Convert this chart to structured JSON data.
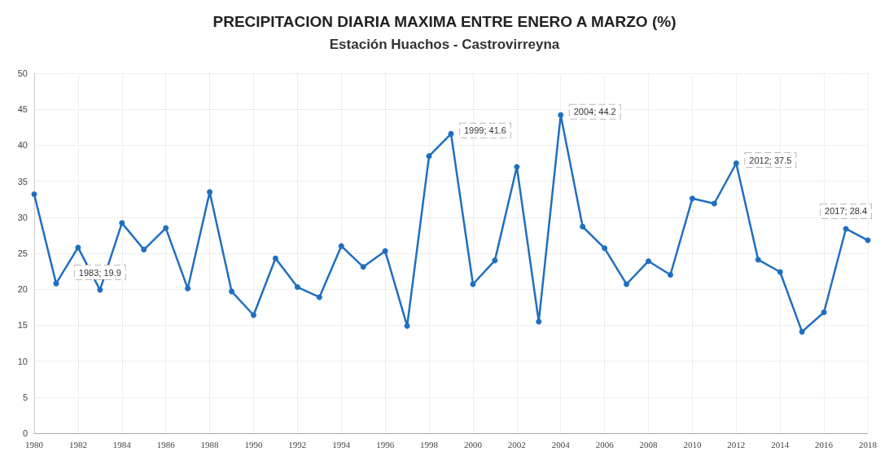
{
  "chart_data": {
    "type": "line",
    "title": "PRECIPITACION DIARIA MAXIMA ENTRE ENERO A MARZO (%)",
    "subtitle": "Estación Huachos - Castrovirreyna",
    "x": [
      1980,
      1981,
      1982,
      1983,
      1984,
      1985,
      1986,
      1987,
      1988,
      1989,
      1990,
      1991,
      1992,
      1993,
      1994,
      1995,
      1996,
      1997,
      1998,
      1999,
      2000,
      2001,
      2002,
      2003,
      2004,
      2005,
      2006,
      2007,
      2008,
      2009,
      2010,
      2011,
      2012,
      2013,
      2014,
      2015,
      2016,
      2017,
      2018
    ],
    "series": [
      {
        "color": "#1f6fc0",
        "values": [
          33.2,
          20.8,
          25.8,
          19.9,
          29.2,
          25.5,
          28.5,
          20.1,
          33.5,
          19.7,
          16.4,
          24.3,
          20.3,
          18.9,
          26.0,
          23.1,
          25.3,
          14.9,
          38.5,
          41.6,
          20.7,
          24.0,
          37.0,
          15.5,
          44.2,
          28.7,
          25.7,
          20.7,
          23.9,
          22.0,
          32.6,
          31.9,
          37.5,
          24.1,
          22.4,
          14.1,
          16.8,
          28.4,
          26.8
        ]
      }
    ],
    "xlim": [
      1980,
      2018
    ],
    "xticks": [
      1980,
      1982,
      1984,
      1986,
      1988,
      1990,
      1992,
      1994,
      1996,
      1998,
      2000,
      2002,
      2004,
      2006,
      2008,
      2010,
      2012,
      2014,
      2016,
      2018
    ],
    "ylim": [
      0,
      50
    ],
    "yticks": [
      0,
      5,
      10,
      15,
      20,
      25,
      30,
      35,
      40,
      45,
      50
    ],
    "grid": true,
    "marker": "circle",
    "line_style": "solid",
    "annotations": [
      {
        "text": "1983; 19.9",
        "x": 1983,
        "y": 19.9
      },
      {
        "text": "1999; 41.6",
        "x": 1999,
        "y": 41.6
      },
      {
        "text": "2004; 44.2",
        "x": 2004,
        "y": 44.2
      },
      {
        "text": "2012; 37.5",
        "x": 2012,
        "y": 37.5
      },
      {
        "text": "2017; 28.4",
        "x": 2017,
        "y": 28.4
      }
    ]
  }
}
